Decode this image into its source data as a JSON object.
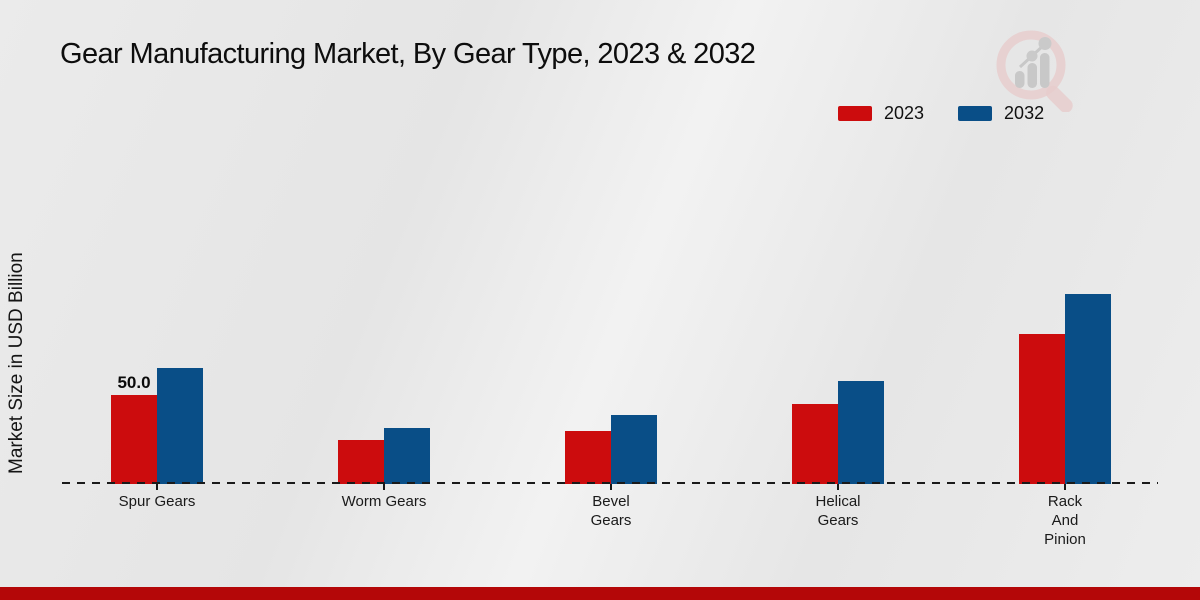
{
  "title": "Gear Manufacturing Market, By Gear Type, 2023 & 2032",
  "ylabel": "Market Size in USD Billion",
  "legend": {
    "position": "top-right",
    "items": [
      {
        "label": "2023",
        "color": "#cc0c0d"
      },
      {
        "label": "2032",
        "color": "#094e87"
      }
    ]
  },
  "chart_data": {
    "type": "bar",
    "title": "Gear Manufacturing Market, By Gear Type, 2023 & 2032",
    "xlabel": "",
    "ylabel": "Market Size in USD Billion",
    "unit": "USD Billion",
    "categories": [
      "Spur Gears",
      "Worm Gears",
      "Bevel Gears",
      "Helical Gears",
      "Rack And Pinion"
    ],
    "category_lines": [
      [
        "Spur Gears"
      ],
      [
        "Worm Gears"
      ],
      [
        "Bevel",
        "Gears"
      ],
      [
        "Helical",
        "Gears"
      ],
      [
        "Rack",
        "And",
        "Pinion"
      ]
    ],
    "series": [
      {
        "name": "2023",
        "color": "#cc0c0d",
        "values": [
          50.0,
          24.5,
          30.0,
          45.0,
          84.5
        ]
      },
      {
        "name": "2032",
        "color": "#094e87",
        "values": [
          65.0,
          31.5,
          39.0,
          58.0,
          106.5
        ]
      }
    ],
    "data_labels": [
      {
        "series": "2023",
        "category": "Spur Gears",
        "text": "50.0"
      }
    ],
    "ylim": [
      0,
      115
    ],
    "grid": false,
    "baseline_style": "dashed",
    "legend_position": "top-right"
  },
  "logo": {
    "icon": "magnifier-bar-chart-logo"
  },
  "colors": {
    "background": "#e9e9e9",
    "footer_bar": "#b40708",
    "baseline": "#1a1a1a",
    "text": "#111111"
  }
}
